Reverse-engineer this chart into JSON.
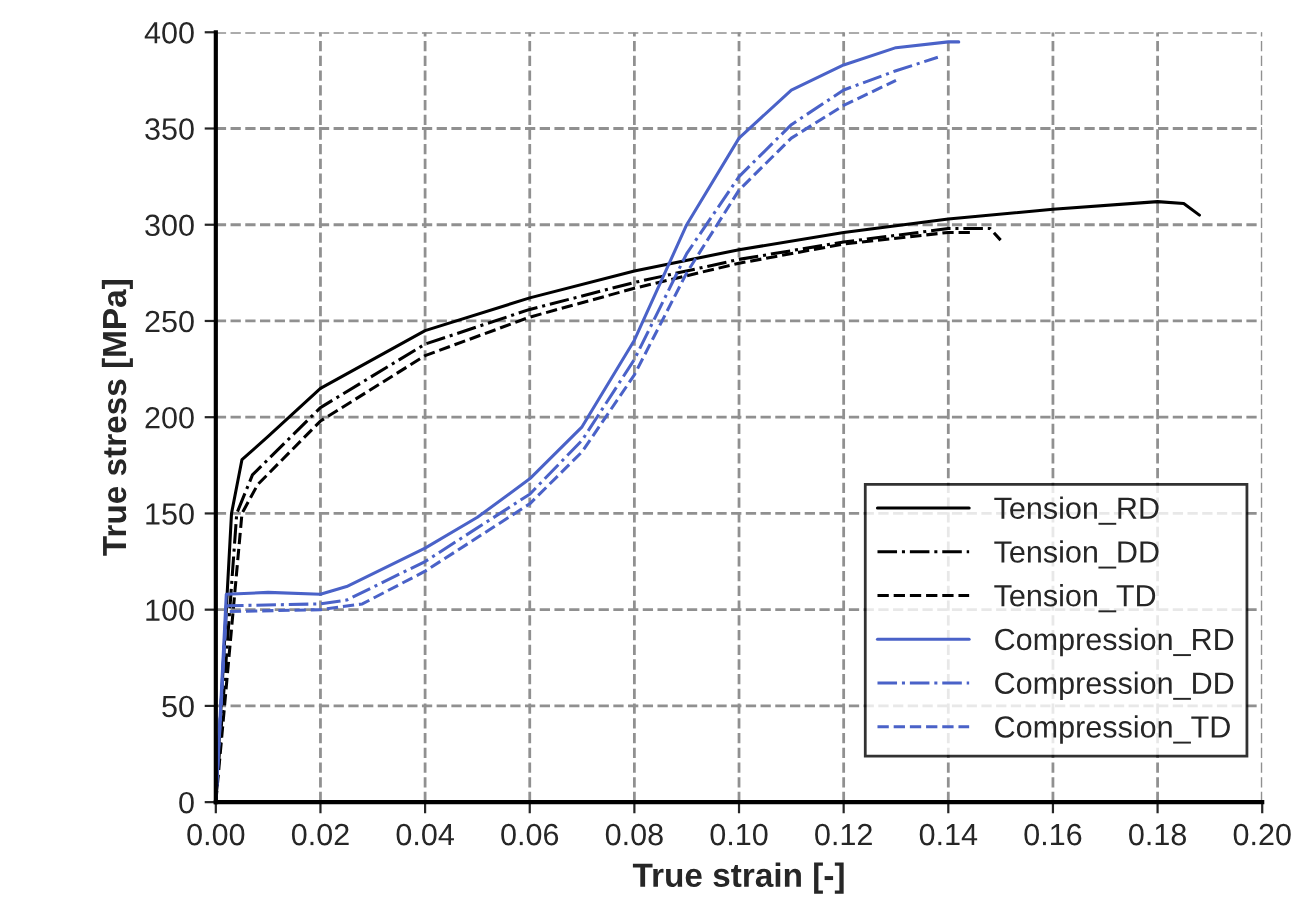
{
  "chart_data": {
    "type": "line",
    "xlabel": "True strain [-]",
    "ylabel": "True stress [MPa]",
    "xlim": [
      0,
      0.2
    ],
    "xticks": [
      {
        "value": 0,
        "label": "0.00"
      },
      {
        "value": 0.02,
        "label": "0.02"
      },
      {
        "value": 0.04,
        "label": "0.04"
      },
      {
        "value": 0.06,
        "label": "0.06"
      },
      {
        "value": 0.08,
        "label": "0.08"
      },
      {
        "value": 0.1,
        "label": "0.10"
      },
      {
        "value": 0.12,
        "label": "0.12"
      },
      {
        "value": 0.14,
        "label": "0.14"
      },
      {
        "value": 0.16,
        "label": "0.16"
      },
      {
        "value": 0.18,
        "label": "0.18"
      },
      {
        "value": 0.2,
        "label": "0.20"
      }
    ],
    "ylim": [
      0,
      400
    ],
    "yticks": [
      0,
      50,
      100,
      150,
      200,
      250,
      300,
      350,
      400
    ],
    "grid": true,
    "legend": "bottom right",
    "marker": "none",
    "series": [
      {
        "name": "Tension_RD",
        "color": "#000000",
        "line_style": "solid",
        "x": [
          0,
          0.003,
          0.005,
          0.01,
          0.02,
          0.04,
          0.06,
          0.08,
          0.1,
          0.12,
          0.14,
          0.16,
          0.18,
          0.185,
          0.188
        ],
        "values": [
          0,
          150,
          178,
          190,
          215,
          245,
          262,
          276,
          287,
          296,
          303,
          308,
          312,
          311,
          305
        ]
      },
      {
        "name": "Tension_DD",
        "color": "#000000",
        "line_style": "dashdot",
        "x": [
          0,
          0.004,
          0.007,
          0.02,
          0.04,
          0.06,
          0.08,
          0.1,
          0.12,
          0.14,
          0.148,
          0.15
        ],
        "values": [
          0,
          150,
          170,
          205,
          238,
          256,
          270,
          282,
          291,
          298,
          298,
          292
        ]
      },
      {
        "name": "Tension_TD",
        "color": "#000000",
        "line_style": "dashed",
        "x": [
          0,
          0.005,
          0.008,
          0.02,
          0.04,
          0.06,
          0.08,
          0.1,
          0.12,
          0.14,
          0.145
        ],
        "values": [
          0,
          150,
          165,
          198,
          232,
          252,
          267,
          280,
          290,
          296,
          296
        ]
      },
      {
        "name": "Compression_RD",
        "color": "#4a62c8",
        "line_style": "solid",
        "x": [
          0,
          0.002,
          0.01,
          0.02,
          0.025,
          0.04,
          0.05,
          0.06,
          0.07,
          0.08,
          0.09,
          0.1,
          0.11,
          0.12,
          0.13,
          0.14,
          0.142
        ],
        "values": [
          0,
          108,
          109,
          108,
          112,
          132,
          148,
          168,
          195,
          240,
          300,
          345,
          370,
          383,
          392,
          395,
          395
        ]
      },
      {
        "name": "Compression_DD",
        "color": "#4a62c8",
        "line_style": "dashdot",
        "x": [
          0,
          0.002,
          0.02,
          0.025,
          0.04,
          0.06,
          0.07,
          0.08,
          0.09,
          0.1,
          0.11,
          0.12,
          0.13,
          0.138
        ],
        "values": [
          0,
          102,
          103,
          105,
          125,
          160,
          188,
          230,
          285,
          325,
          352,
          370,
          380,
          387
        ]
      },
      {
        "name": "Compression_TD",
        "color": "#4a62c8",
        "line_style": "dashed",
        "x": [
          0,
          0.002,
          0.02,
          0.028,
          0.04,
          0.06,
          0.07,
          0.08,
          0.09,
          0.1,
          0.11,
          0.12,
          0.13
        ],
        "values": [
          0,
          99,
          100,
          103,
          120,
          155,
          182,
          222,
          275,
          318,
          345,
          362,
          375
        ]
      }
    ]
  }
}
